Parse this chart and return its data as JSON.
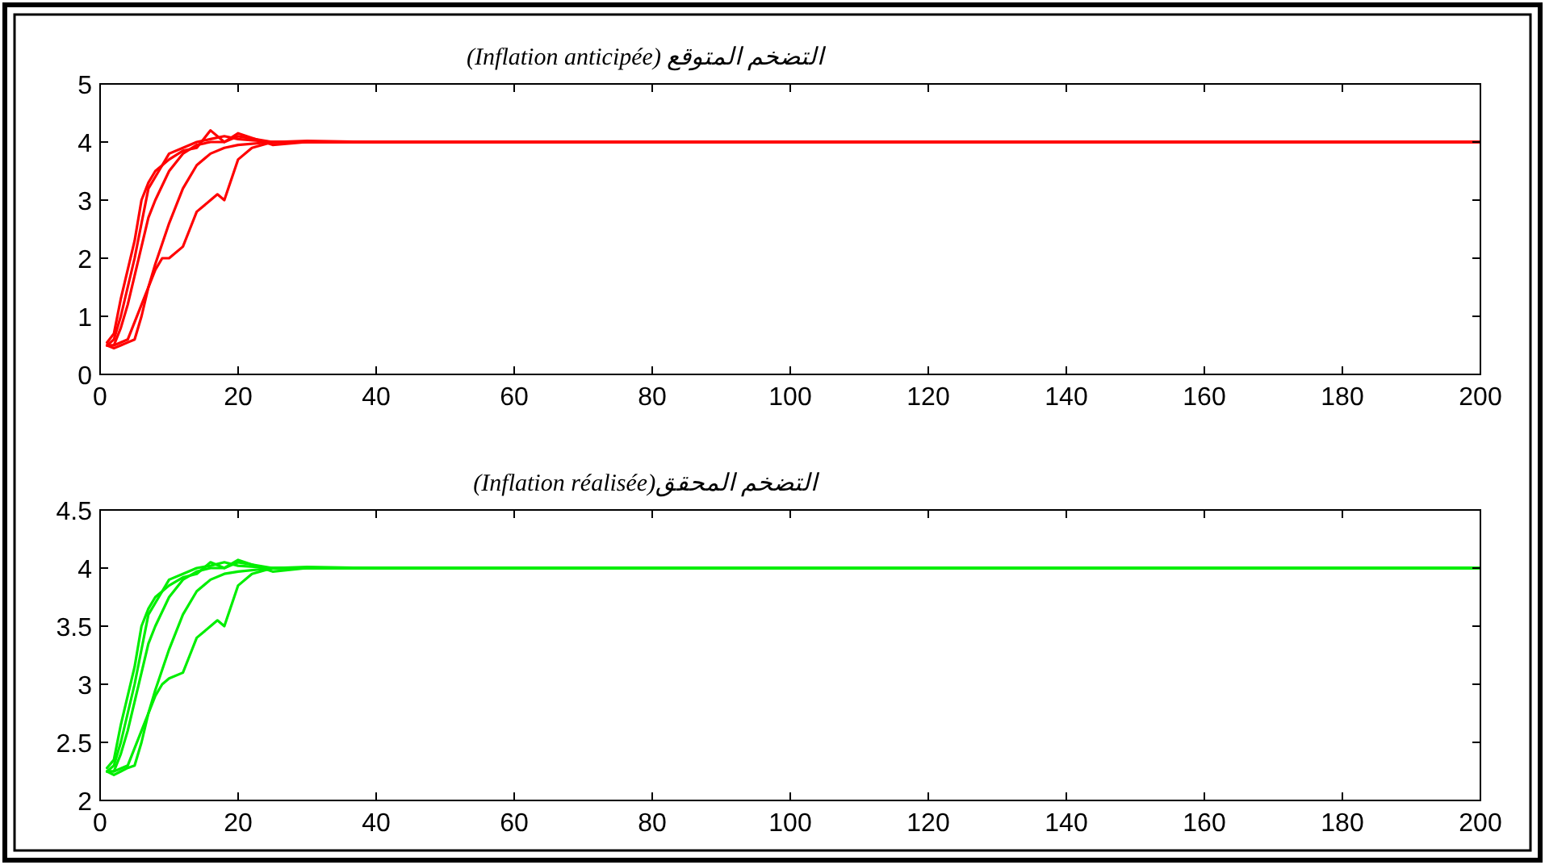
{
  "chart_data": [
    {
      "type": "line",
      "title": "التضخم المتوقع (Inflation anticipée)",
      "xlim": [
        0,
        200
      ],
      "ylim": [
        0,
        5
      ],
      "xticks": [
        0,
        20,
        40,
        60,
        80,
        100,
        120,
        140,
        160,
        180,
        200
      ],
      "yticks": [
        0,
        1,
        2,
        3,
        4,
        5
      ],
      "series": [
        {
          "color": "#ff0000",
          "x": [
            1,
            2,
            3,
            4,
            5,
            6,
            7,
            8,
            10,
            12,
            14,
            16,
            18,
            20,
            25,
            30,
            40,
            50,
            200
          ],
          "values": [
            0.5,
            0.6,
            1.0,
            1.5,
            2.0,
            2.6,
            3.2,
            3.4,
            3.8,
            3.9,
            4.0,
            4.05,
            4.1,
            4.05,
            4.0,
            4.02,
            4.0,
            4.0,
            4.0
          ]
        },
        {
          "color": "#ff0000",
          "x": [
            1,
            2,
            3,
            4,
            5,
            6,
            7,
            8,
            10,
            12,
            14,
            16,
            18,
            20,
            25,
            30,
            40,
            50,
            200
          ],
          "values": [
            0.5,
            0.45,
            0.5,
            0.55,
            0.6,
            1.0,
            1.5,
            1.9,
            2.6,
            3.2,
            3.6,
            3.8,
            3.9,
            3.95,
            4.0,
            4.0,
            4.0,
            4.0,
            4.0
          ]
        },
        {
          "color": "#ff0000",
          "x": [
            1,
            2,
            4,
            6,
            8,
            9,
            10,
            12,
            13,
            14,
            16,
            17,
            18,
            20,
            22,
            25,
            30,
            40,
            200
          ],
          "values": [
            0.5,
            0.5,
            0.6,
            1.2,
            1.8,
            2.0,
            2.0,
            2.2,
            2.5,
            2.8,
            3.0,
            3.1,
            3.0,
            3.7,
            3.9,
            4.0,
            4.0,
            4.0,
            4.0
          ]
        },
        {
          "color": "#ff0000",
          "x": [
            1,
            2,
            3,
            4,
            5,
            6,
            7,
            8,
            10,
            12,
            14,
            16,
            18,
            20,
            25,
            30,
            40,
            50,
            200
          ],
          "values": [
            0.5,
            0.5,
            0.8,
            1.2,
            1.7,
            2.2,
            2.7,
            3.0,
            3.5,
            3.8,
            3.95,
            4.0,
            4.0,
            4.1,
            4.0,
            4.0,
            4.0,
            4.0,
            4.0
          ]
        },
        {
          "color": "#ff0000",
          "x": [
            1,
            2,
            3,
            4,
            5,
            6,
            7,
            8,
            10,
            12,
            14,
            16,
            18,
            20,
            25,
            30,
            40,
            50,
            200
          ],
          "values": [
            0.55,
            0.7,
            1.3,
            1.8,
            2.3,
            3.0,
            3.3,
            3.5,
            3.7,
            3.85,
            3.9,
            4.2,
            4.0,
            4.15,
            3.95,
            4.0,
            4.0,
            4.0,
            4.0
          ]
        }
      ]
    },
    {
      "type": "line",
      "title": "التضخم المحقق(Inflation réalisée)",
      "xlim": [
        0,
        200
      ],
      "ylim": [
        2,
        4.5
      ],
      "xticks": [
        0,
        20,
        40,
        60,
        80,
        100,
        120,
        140,
        160,
        180,
        200
      ],
      "yticks": [
        2,
        2.5,
        3,
        3.5,
        4,
        4.5
      ],
      "series": [
        {
          "color": "#00ee00",
          "x": [
            1,
            2,
            3,
            4,
            5,
            6,
            7,
            8,
            10,
            12,
            14,
            16,
            18,
            20,
            25,
            30,
            40,
            50,
            200
          ],
          "values": [
            2.25,
            2.3,
            2.5,
            2.75,
            3.0,
            3.3,
            3.6,
            3.7,
            3.9,
            3.95,
            4.0,
            4.02,
            4.05,
            4.02,
            4.0,
            4.01,
            4.0,
            4.0,
            4.0
          ]
        },
        {
          "color": "#00ee00",
          "x": [
            1,
            2,
            3,
            4,
            5,
            6,
            7,
            8,
            10,
            12,
            14,
            16,
            18,
            20,
            25,
            30,
            40,
            50,
            200
          ],
          "values": [
            2.25,
            2.22,
            2.25,
            2.28,
            2.3,
            2.5,
            2.75,
            2.95,
            3.3,
            3.6,
            3.8,
            3.9,
            3.95,
            3.97,
            4.0,
            4.0,
            4.0,
            4.0,
            4.0
          ]
        },
        {
          "color": "#00ee00",
          "x": [
            1,
            2,
            4,
            6,
            8,
            9,
            10,
            12,
            13,
            14,
            16,
            17,
            18,
            20,
            22,
            25,
            30,
            40,
            200
          ],
          "values": [
            2.25,
            2.25,
            2.3,
            2.6,
            2.9,
            3.0,
            3.05,
            3.1,
            3.25,
            3.4,
            3.5,
            3.55,
            3.5,
            3.85,
            3.95,
            4.0,
            4.0,
            4.0,
            4.0
          ]
        },
        {
          "color": "#00ee00",
          "x": [
            1,
            2,
            3,
            4,
            5,
            6,
            7,
            8,
            10,
            12,
            14,
            16,
            18,
            20,
            25,
            30,
            40,
            50,
            200
          ],
          "values": [
            2.25,
            2.25,
            2.4,
            2.6,
            2.85,
            3.1,
            3.35,
            3.5,
            3.75,
            3.9,
            3.97,
            4.0,
            4.0,
            4.05,
            4.0,
            4.0,
            4.0,
            4.0,
            4.0
          ]
        },
        {
          "color": "#00ee00",
          "x": [
            1,
            2,
            3,
            4,
            5,
            6,
            7,
            8,
            10,
            12,
            14,
            16,
            18,
            20,
            25,
            30,
            40,
            50,
            200
          ],
          "values": [
            2.28,
            2.35,
            2.65,
            2.9,
            3.15,
            3.5,
            3.65,
            3.75,
            3.85,
            3.92,
            3.95,
            4.05,
            4.0,
            4.07,
            3.97,
            4.0,
            4.0,
            4.0,
            4.0
          ]
        }
      ]
    }
  ]
}
